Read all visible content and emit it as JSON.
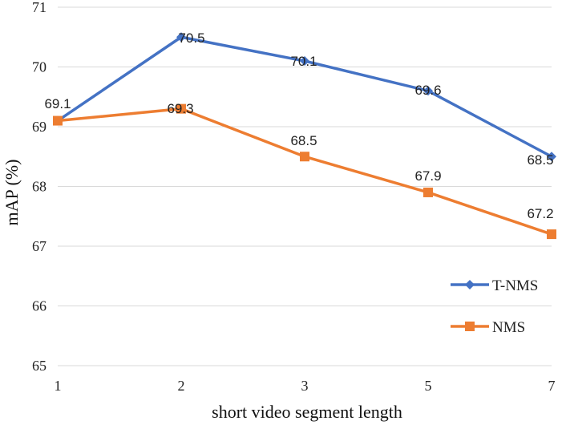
{
  "chart_data": {
    "type": "line",
    "categories": [
      "1",
      "2",
      "3",
      "5",
      "7"
    ],
    "series": [
      {
        "name": "T-NMS",
        "values": [
          69.1,
          70.5,
          70.1,
          69.6,
          68.5
        ],
        "color": "#4472C4",
        "marker": "diamond"
      },
      {
        "name": "NMS",
        "values": [
          69.1,
          69.3,
          68.5,
          67.9,
          67.2
        ],
        "color": "#ED7D31",
        "marker": "square"
      }
    ],
    "data_labels": [
      {
        "text": "69.1"
      },
      {
        "text": "70.5"
      },
      {
        "text": "70.1"
      },
      {
        "text": "69.6"
      },
      {
        "text": "68.5"
      },
      {
        "text": "69.3"
      },
      {
        "text": "68.5"
      },
      {
        "text": "67.9"
      },
      {
        "text": "67.2"
      }
    ],
    "xlabel": "short video segment length",
    "ylabel": "mAP (%)",
    "ylim": [
      65,
      71
    ],
    "yticks": [
      "65",
      "66",
      "67",
      "68",
      "69",
      "70",
      "71"
    ],
    "grid": true,
    "legend_position": "lower-right"
  }
}
